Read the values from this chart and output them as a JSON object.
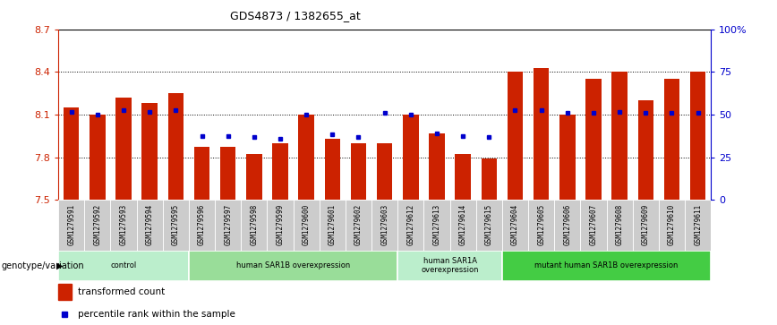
{
  "title": "GDS4873 / 1382655_at",
  "samples": [
    "GSM1279591",
    "GSM1279592",
    "GSM1279593",
    "GSM1279594",
    "GSM1279595",
    "GSM1279596",
    "GSM1279597",
    "GSM1279598",
    "GSM1279599",
    "GSM1279600",
    "GSM1279601",
    "GSM1279602",
    "GSM1279603",
    "GSM1279612",
    "GSM1279613",
    "GSM1279614",
    "GSM1279615",
    "GSM1279604",
    "GSM1279605",
    "GSM1279606",
    "GSM1279607",
    "GSM1279608",
    "GSM1279609",
    "GSM1279610",
    "GSM1279611"
  ],
  "bar_values": [
    8.15,
    8.1,
    8.22,
    8.18,
    8.25,
    7.87,
    7.87,
    7.82,
    7.9,
    8.1,
    7.93,
    7.9,
    7.9,
    8.1,
    7.97,
    7.82,
    7.79,
    8.4,
    8.43,
    8.1,
    8.35,
    8.4,
    8.2,
    8.35,
    8.4
  ],
  "dot_values": [
    8.12,
    8.1,
    8.13,
    8.12,
    8.13,
    7.95,
    7.95,
    7.94,
    7.93,
    8.1,
    7.96,
    7.94,
    8.11,
    8.1,
    7.97,
    7.95,
    7.94,
    8.13,
    8.13,
    8.11,
    8.11,
    8.12,
    8.11,
    8.11,
    8.11
  ],
  "ylim_left": [
    7.5,
    8.7
  ],
  "ylim_right": [
    0,
    100
  ],
  "yticks_left": [
    7.5,
    7.8,
    8.1,
    8.4,
    8.7
  ],
  "yticks_right": [
    0,
    25,
    50,
    75,
    100
  ],
  "ytick_labels_left": [
    "7.5",
    "7.8",
    "8.1",
    "8.4",
    "8.7"
  ],
  "ytick_labels_right": [
    "0",
    "25",
    "50",
    "75",
    "100%"
  ],
  "bar_color": "#cc2200",
  "dot_color": "#0000cc",
  "groups": [
    {
      "label": "control",
      "start": 0,
      "end": 4,
      "color": "#bbeecc"
    },
    {
      "label": "human SAR1B overexpression",
      "start": 5,
      "end": 12,
      "color": "#99dd99"
    },
    {
      "label": "human SAR1A\noverexpression",
      "start": 13,
      "end": 16,
      "color": "#bbeecc"
    },
    {
      "label": "mutant human SAR1B overexpression",
      "start": 17,
      "end": 24,
      "color": "#44cc44"
    }
  ],
  "genotype_label": "genotype/variation",
  "legend_bar_label": "transformed count",
  "legend_dot_label": "percentile rank within the sample",
  "yticklabel_left_color": "#cc2200",
  "yticklabel_right_color": "#0000cc"
}
